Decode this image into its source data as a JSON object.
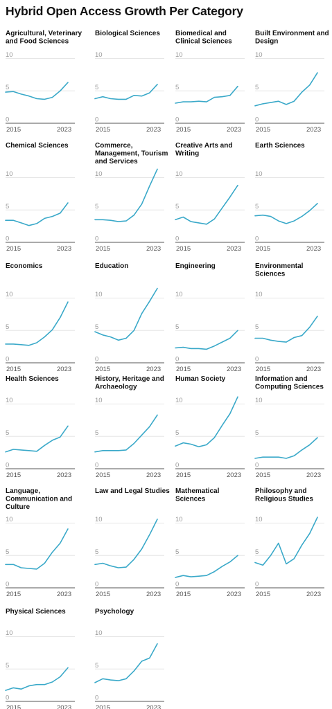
{
  "title": "Hybrid Open Access Growth Per Category",
  "colors": {
    "line": "#3aa9c9",
    "grid": "#e6e6e6",
    "baseline": "#555555"
  },
  "chart_data": [
    {
      "type": "line",
      "title": "Agricultural, Veterinary and Food Sciences",
      "x": [
        2015,
        2016,
        2017,
        2018,
        2019,
        2020,
        2021,
        2022,
        2023
      ],
      "values": [
        4.8,
        4.9,
        4.5,
        4.2,
        3.8,
        3.7,
        4.0,
        5.0,
        6.3
      ],
      "ylim": [
        0,
        10
      ],
      "yticks": [
        0,
        5,
        10
      ],
      "xticks": [
        2015,
        2023
      ]
    },
    {
      "type": "line",
      "title": "Biological Sciences",
      "x": [
        2015,
        2016,
        2017,
        2018,
        2019,
        2020,
        2021,
        2022,
        2023
      ],
      "values": [
        3.8,
        4.1,
        3.8,
        3.7,
        3.7,
        4.3,
        4.2,
        4.7,
        6.0
      ],
      "ylim": [
        0,
        10
      ],
      "yticks": [
        0,
        5,
        10
      ],
      "xticks": [
        2015,
        2023
      ]
    },
    {
      "type": "line",
      "title": "Biomedical and Clinical Sciences",
      "x": [
        2015,
        2016,
        2017,
        2018,
        2019,
        2020,
        2021,
        2022,
        2023
      ],
      "values": [
        3.1,
        3.3,
        3.3,
        3.4,
        3.3,
        4.0,
        4.1,
        4.3,
        5.7
      ],
      "ylim": [
        0,
        10
      ],
      "yticks": [
        0,
        5,
        10
      ],
      "xticks": [
        2015,
        2023
      ]
    },
    {
      "type": "line",
      "title": "Built Environment and Design",
      "x": [
        2015,
        2016,
        2017,
        2018,
        2019,
        2020,
        2021,
        2022,
        2023
      ],
      "values": [
        2.7,
        3.0,
        3.2,
        3.4,
        2.9,
        3.4,
        4.8,
        5.9,
        7.8
      ],
      "ylim": [
        0,
        10
      ],
      "yticks": [
        0,
        5,
        10
      ],
      "xticks": [
        2015,
        2023
      ]
    },
    {
      "type": "line",
      "title": "Chemical Sciences",
      "x": [
        2015,
        2016,
        2017,
        2018,
        2019,
        2020,
        2021,
        2022,
        2023
      ],
      "values": [
        3.4,
        3.4,
        3.0,
        2.6,
        2.9,
        3.7,
        4.0,
        4.5,
        6.1
      ],
      "ylim": [
        0,
        10
      ],
      "yticks": [
        0,
        5,
        10
      ],
      "xticks": [
        2015,
        2023
      ]
    },
    {
      "type": "line",
      "title": "Commerce, Management, Tourism and Services",
      "x": [
        2015,
        2016,
        2017,
        2018,
        2019,
        2020,
        2021,
        2022,
        2023
      ],
      "values": [
        3.5,
        3.5,
        3.4,
        3.2,
        3.3,
        4.2,
        5.9,
        8.7,
        11.3
      ],
      "ylim": [
        0,
        10
      ],
      "yticks": [
        0,
        5,
        10
      ],
      "xticks": [
        2015,
        2023
      ]
    },
    {
      "type": "line",
      "title": "Creative Arts and Writing",
      "x": [
        2015,
        2016,
        2017,
        2018,
        2019,
        2020,
        2021,
        2022,
        2023
      ],
      "values": [
        3.5,
        3.9,
        3.2,
        3.0,
        2.8,
        3.6,
        5.3,
        7.0,
        8.8
      ],
      "ylim": [
        0,
        10
      ],
      "yticks": [
        0,
        5,
        10
      ],
      "xticks": [
        2015,
        2023
      ]
    },
    {
      "type": "line",
      "title": "Earth Sciences",
      "x": [
        2015,
        2016,
        2017,
        2018,
        2019,
        2020,
        2021,
        2022,
        2023
      ],
      "values": [
        4.1,
        4.2,
        4.0,
        3.3,
        2.9,
        3.3,
        4.0,
        4.9,
        6.0
      ],
      "ylim": [
        0,
        10
      ],
      "yticks": [
        0,
        5,
        10
      ],
      "xticks": [
        2015,
        2023
      ]
    },
    {
      "type": "line",
      "title": "Economics",
      "x": [
        2015,
        2016,
        2017,
        2018,
        2019,
        2020,
        2021,
        2022,
        2023
      ],
      "values": [
        2.9,
        2.9,
        2.8,
        2.7,
        3.1,
        4.0,
        5.1,
        7.0,
        9.4
      ],
      "ylim": [
        0,
        10
      ],
      "yticks": [
        0,
        5,
        10
      ],
      "xticks": [
        2015,
        2023
      ]
    },
    {
      "type": "line",
      "title": "Education",
      "x": [
        2015,
        2016,
        2017,
        2018,
        2019,
        2020,
        2021,
        2022,
        2023
      ],
      "values": [
        4.8,
        4.3,
        4.0,
        3.5,
        3.8,
        5.0,
        7.6,
        9.5,
        11.5
      ],
      "ylim": [
        0,
        10
      ],
      "yticks": [
        0,
        5,
        10
      ],
      "xticks": [
        2015,
        2023
      ]
    },
    {
      "type": "line",
      "title": "Engineering",
      "x": [
        2015,
        2016,
        2017,
        2018,
        2019,
        2020,
        2021,
        2022,
        2023
      ],
      "values": [
        2.3,
        2.4,
        2.2,
        2.2,
        2.1,
        2.6,
        3.2,
        3.8,
        5.0
      ],
      "ylim": [
        0,
        10
      ],
      "yticks": [
        0,
        5,
        10
      ],
      "xticks": [
        2015,
        2023
      ]
    },
    {
      "type": "line",
      "title": "Environmental Sciences",
      "x": [
        2015,
        2016,
        2017,
        2018,
        2019,
        2020,
        2021,
        2022,
        2023
      ],
      "values": [
        3.8,
        3.8,
        3.5,
        3.3,
        3.2,
        3.9,
        4.2,
        5.5,
        7.2
      ],
      "ylim": [
        0,
        10
      ],
      "yticks": [
        0,
        5,
        10
      ],
      "xticks": [
        2015,
        2023
      ]
    },
    {
      "type": "line",
      "title": "Health Sciences",
      "x": [
        2015,
        2016,
        2017,
        2018,
        2019,
        2020,
        2021,
        2022,
        2023
      ],
      "values": [
        2.6,
        3.0,
        2.9,
        2.8,
        2.7,
        3.6,
        4.4,
        4.9,
        6.6
      ],
      "ylim": [
        0,
        10
      ],
      "yticks": [
        0,
        5,
        10
      ],
      "xticks": [
        2015,
        2023
      ]
    },
    {
      "type": "line",
      "title": "History, Heritage and Archaeology",
      "x": [
        2015,
        2016,
        2017,
        2018,
        2019,
        2020,
        2021,
        2022,
        2023
      ],
      "values": [
        2.6,
        2.8,
        2.8,
        2.8,
        2.9,
        3.9,
        5.2,
        6.5,
        8.3
      ],
      "ylim": [
        0,
        10
      ],
      "yticks": [
        0,
        5,
        10
      ],
      "xticks": [
        2015,
        2023
      ]
    },
    {
      "type": "line",
      "title": "Human Society",
      "x": [
        2015,
        2016,
        2017,
        2018,
        2019,
        2020,
        2021,
        2022,
        2023
      ],
      "values": [
        3.5,
        4.0,
        3.8,
        3.4,
        3.7,
        4.8,
        6.7,
        8.5,
        11.1
      ],
      "ylim": [
        0,
        10
      ],
      "yticks": [
        0,
        5,
        10
      ],
      "xticks": [
        2015,
        2023
      ]
    },
    {
      "type": "line",
      "title": "Information and Computing Sciences",
      "x": [
        2015,
        2016,
        2017,
        2018,
        2019,
        2020,
        2021,
        2022,
        2023
      ],
      "values": [
        1.6,
        1.8,
        1.8,
        1.8,
        1.6,
        2.0,
        2.9,
        3.7,
        4.8
      ],
      "ylim": [
        0,
        10
      ],
      "yticks": [
        0,
        5,
        10
      ],
      "xticks": [
        2015,
        2023
      ]
    },
    {
      "type": "line",
      "title": "Language, Communication and Culture",
      "x": [
        2015,
        2016,
        2017,
        2018,
        2019,
        2020,
        2021,
        2022,
        2023
      ],
      "values": [
        3.6,
        3.6,
        3.1,
        3.0,
        2.9,
        3.8,
        5.5,
        6.9,
        9.1
      ],
      "ylim": [
        0,
        10
      ],
      "yticks": [
        0,
        5,
        10
      ],
      "xticks": [
        2015,
        2023
      ]
    },
    {
      "type": "line",
      "title": "Law and Legal Studies",
      "x": [
        2015,
        2016,
        2017,
        2018,
        2019,
        2020,
        2021,
        2022,
        2023
      ],
      "values": [
        3.6,
        3.8,
        3.4,
        3.1,
        3.2,
        4.4,
        6.0,
        8.2,
        10.6
      ],
      "ylim": [
        0,
        10
      ],
      "yticks": [
        0,
        5,
        10
      ],
      "xticks": [
        2015,
        2023
      ]
    },
    {
      "type": "line",
      "title": "Mathematical Sciences",
      "x": [
        2015,
        2016,
        2017,
        2018,
        2019,
        2020,
        2021,
        2022,
        2023
      ],
      "values": [
        1.6,
        1.9,
        1.7,
        1.8,
        1.9,
        2.5,
        3.3,
        4.0,
        5.0
      ],
      "ylim": [
        0,
        10
      ],
      "yticks": [
        0,
        5,
        10
      ],
      "xticks": [
        2015,
        2023
      ]
    },
    {
      "type": "line",
      "title": "Philosophy and Religious Studies",
      "x": [
        2015,
        2016,
        2017,
        2018,
        2019,
        2020,
        2021,
        2022,
        2023
      ],
      "values": [
        3.9,
        3.5,
        5.0,
        6.9,
        3.7,
        4.5,
        6.6,
        8.4,
        10.9
      ],
      "ylim": [
        0,
        10
      ],
      "yticks": [
        0,
        5,
        10
      ],
      "xticks": [
        2015,
        2023
      ]
    },
    {
      "type": "line",
      "title": "Physical Sciences",
      "x": [
        2015,
        2016,
        2017,
        2018,
        2019,
        2020,
        2021,
        2022,
        2023
      ],
      "values": [
        1.7,
        2.1,
        1.9,
        2.4,
        2.6,
        2.6,
        3.0,
        3.8,
        5.2
      ],
      "ylim": [
        0,
        10
      ],
      "yticks": [
        0,
        5,
        10
      ],
      "xticks": [
        2015,
        2023
      ]
    },
    {
      "type": "line",
      "title": "Psychology",
      "x": [
        2015,
        2016,
        2017,
        2018,
        2019,
        2020,
        2021,
        2022,
        2023
      ],
      "values": [
        2.9,
        3.5,
        3.3,
        3.2,
        3.5,
        4.7,
        6.2,
        6.7,
        8.9
      ],
      "ylim": [
        0,
        10
      ],
      "yticks": [
        0,
        5,
        10
      ],
      "xticks": [
        2015,
        2023
      ]
    }
  ]
}
